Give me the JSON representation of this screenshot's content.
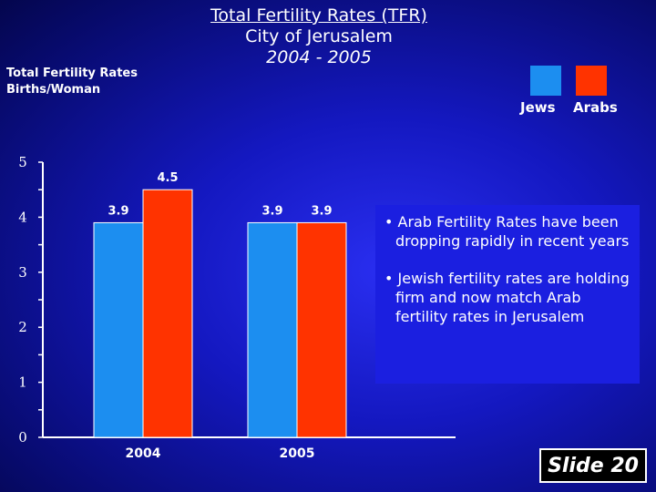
{
  "title": {
    "main": "Total Fertility Rates (TFR)",
    "subtitle": "City of Jerusalem",
    "period": "2004 - 2005"
  },
  "ylabel": {
    "line1": "Total Fertility Rates",
    "line2": "Births/Woman"
  },
  "legend": [
    {
      "name": "Jews",
      "color": "#1c8ef0"
    },
    {
      "name": "Arabs",
      "color": "#ff3300"
    }
  ],
  "chart_data": {
    "type": "bar",
    "categories": [
      "2004",
      "2005"
    ],
    "series": [
      {
        "name": "Jews",
        "color": "#1c8ef0",
        "values": [
          3.9,
          3.9
        ],
        "labels": [
          "3.9",
          "3.9"
        ]
      },
      {
        "name": "Arabs",
        "color": "#ff3300",
        "values": [
          4.5,
          3.9
        ],
        "labels": [
          "4.5",
          "3.9"
        ]
      }
    ],
    "ylim": [
      0,
      5
    ],
    "yticks": [
      "0",
      "1",
      "2",
      "3",
      "4",
      "5"
    ],
    "ylabel": "Total Fertility Rates Births/Woman",
    "xlabel": "",
    "legend_position": "top-right",
    "grid": false
  },
  "notes": [
    "• Arab Fertility Rates have been dropping rapidly in recent years",
    "• Jewish fertility rates are holding firm and now match Arab fertility rates in Jerusalem"
  ],
  "slide_label": "Slide 20"
}
